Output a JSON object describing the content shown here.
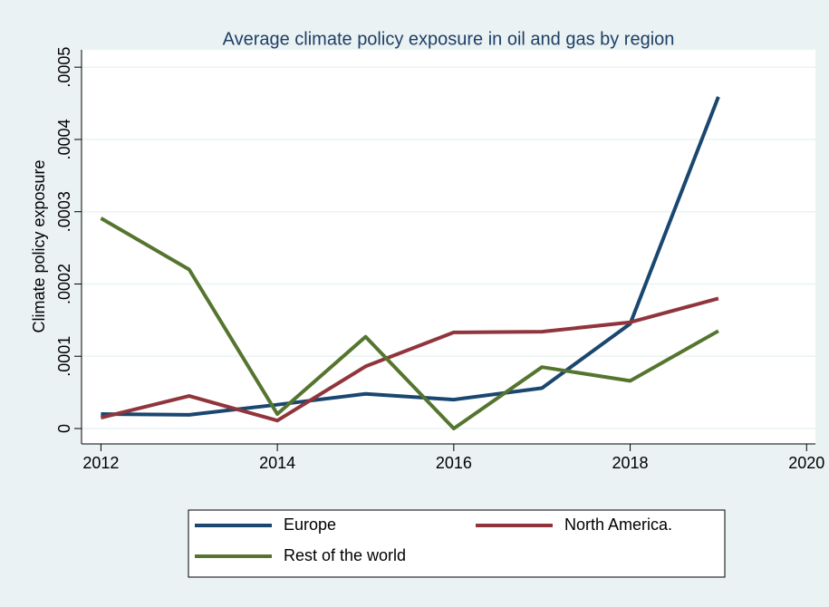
{
  "chart_data": {
    "type": "line",
    "title": "Average climate policy exposure in oil and gas by region",
    "y_label": "Climate policy exposure",
    "x": [
      2012,
      2013,
      2014,
      2015,
      2016,
      2017,
      2018,
      2019
    ],
    "series": [
      {
        "name": "Europe",
        "color": "#1a476f",
        "values": [
          2e-05,
          1.9e-05,
          3.3e-05,
          4.8e-05,
          4e-05,
          5.6e-05,
          0.000145,
          0.000459
        ]
      },
      {
        "name": "North America.",
        "color": "#90353b",
        "values": [
          1.5e-05,
          4.5e-05,
          1.1e-05,
          8.6e-05,
          0.000133,
          0.000134,
          0.000147,
          0.00018
        ]
      },
      {
        "name": "Rest of the world",
        "color": "#55752f",
        "values": [
          0.000291,
          0.00022,
          2e-05,
          0.000127,
          0,
          8.5e-05,
          6.6e-05,
          0.000135
        ]
      }
    ],
    "xlim": [
      2011.78,
      2020.1
    ],
    "xticks": [
      2012,
      2014,
      2016,
      2018,
      2020
    ],
    "ylim": [
      -2.13e-05,
      0.000524
    ],
    "yticks": [
      0,
      {
        "value": 0.0001,
        "label": ".0001"
      },
      {
        "value": 0.0002,
        "label": ".0002"
      },
      {
        "value": 0.0003,
        "label": ".0003"
      },
      {
        "value": 0.0004,
        "label": ".0004"
      },
      {
        "value": 0.0005,
        "label": ".0005"
      }
    ],
    "grid": true,
    "legend_position": "bottom"
  }
}
